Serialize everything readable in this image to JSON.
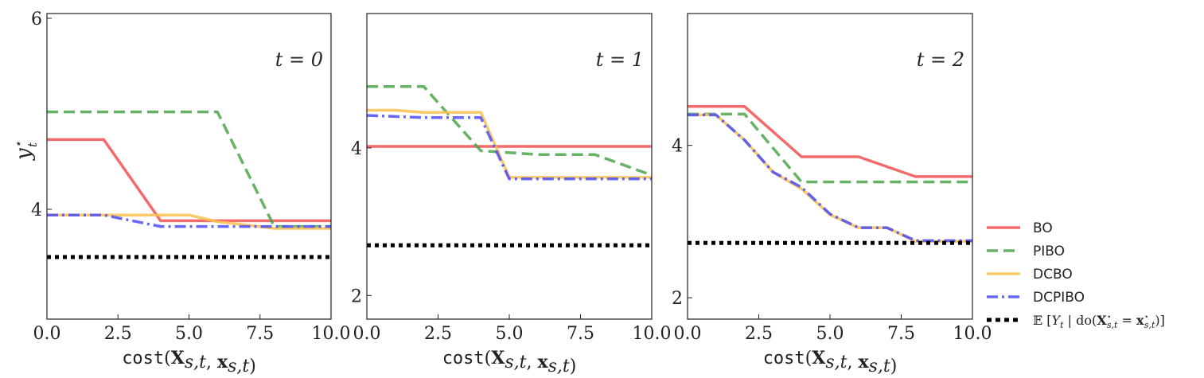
{
  "chart_data": [
    {
      "type": "line",
      "annotation": "t = 0",
      "xlabel": "cost(X_{s,t}, x_{s,t})",
      "ylabel": "y_t*",
      "xlim": [
        0,
        10
      ],
      "ylim": [
        2.85,
        6.05
      ],
      "xticks": [
        "0.0",
        "2.5",
        "5.0",
        "7.5",
        "10.0"
      ],
      "yticks": [
        {
          "value": 4,
          "label": "4"
        },
        {
          "value": 6,
          "label": "6"
        }
      ],
      "series": [
        {
          "name": "BO",
          "x": [
            0,
            2,
            4,
            10
          ],
          "y": [
            4.73,
            4.73,
            3.88,
            3.88
          ]
        },
        {
          "name": "PIBO",
          "x": [
            0,
            6,
            8,
            10
          ],
          "y": [
            5.02,
            5.02,
            3.82,
            3.82
          ]
        },
        {
          "name": "DCBO",
          "x": [
            0,
            2,
            5,
            6,
            8,
            10
          ],
          "y": [
            3.94,
            3.94,
            3.94,
            3.87,
            3.8,
            3.8
          ]
        },
        {
          "name": "DCPIBO",
          "x": [
            0,
            2,
            4,
            10
          ],
          "y": [
            3.94,
            3.94,
            3.82,
            3.82
          ]
        },
        {
          "name": "E[Y_t | do(X*_{s,t} = x*_{s,t})]",
          "x": [
            0,
            10
          ],
          "y": [
            3.5,
            3.5
          ]
        }
      ]
    },
    {
      "type": "line",
      "annotation": "t = 1",
      "xlabel": "cost(X_{s,t}, x_{s,t})",
      "ylabel": "",
      "xlim": [
        0,
        10
      ],
      "ylim": [
        1.68,
        5.82
      ],
      "xticks": [
        "0.0",
        "2.5",
        "5.0",
        "7.5",
        "10.0"
      ],
      "yticks": [
        {
          "value": 2,
          "label": "2"
        },
        {
          "value": 4,
          "label": "4"
        }
      ],
      "series": [
        {
          "name": "BO",
          "x": [
            0,
            10
          ],
          "y": [
            4.02,
            4.02
          ]
        },
        {
          "name": "PIBO",
          "x": [
            0,
            2,
            4,
            6,
            8,
            10
          ],
          "y": [
            4.83,
            4.83,
            3.96,
            3.91,
            3.91,
            3.63
          ]
        },
        {
          "name": "DCBO",
          "x": [
            0,
            1,
            2,
            4,
            5,
            10
          ],
          "y": [
            4.51,
            4.51,
            4.48,
            4.48,
            3.6,
            3.6
          ]
        },
        {
          "name": "DCPIBO",
          "x": [
            0,
            2,
            4,
            5,
            10
          ],
          "y": [
            4.44,
            4.41,
            4.41,
            3.58,
            3.58
          ]
        },
        {
          "name": "E[Y_t | do(X*_{s,t} = x*_{s,t})]",
          "x": [
            0,
            10
          ],
          "y": [
            2.68,
            2.68
          ]
        }
      ]
    },
    {
      "type": "line",
      "annotation": "t = 2",
      "xlabel": "cost(X_{s,t}, x_{s,t})",
      "ylabel": "",
      "xlim": [
        0,
        10
      ],
      "ylim": [
        1.72,
        5.73
      ],
      "xticks": [
        "0.0",
        "2.5",
        "5.0",
        "7.5",
        "10.0"
      ],
      "yticks": [
        {
          "value": 2,
          "label": "2"
        },
        {
          "value": 4,
          "label": "4"
        }
      ],
      "series": [
        {
          "name": "BO",
          "x": [
            0,
            2,
            4,
            6,
            8,
            10
          ],
          "y": [
            4.51,
            4.51,
            3.85,
            3.85,
            3.59,
            3.59
          ]
        },
        {
          "name": "PIBO",
          "x": [
            0,
            2,
            4,
            10
          ],
          "y": [
            4.41,
            4.41,
            3.52,
            3.52
          ]
        },
        {
          "name": "DCBO",
          "x": [
            0,
            1,
            2,
            3,
            4,
            5,
            6,
            7,
            8,
            10
          ],
          "y": [
            4.4,
            4.4,
            4.07,
            3.65,
            3.43,
            3.09,
            2.92,
            2.92,
            2.74,
            2.74
          ]
        },
        {
          "name": "DCPIBO",
          "x": [
            0,
            1,
            2,
            3,
            4,
            5,
            6,
            7,
            8,
            10
          ],
          "y": [
            4.4,
            4.4,
            4.07,
            3.65,
            3.45,
            3.1,
            2.92,
            2.92,
            2.75,
            2.75
          ]
        },
        {
          "name": "E[Y_t | do(X*_{s,t} = x*_{s,t})]",
          "x": [
            0,
            10
          ],
          "y": [
            2.72,
            2.72
          ]
        }
      ]
    }
  ],
  "legend": {
    "placement": "right",
    "entries": [
      {
        "label": "BO",
        "color": "#f0504f",
        "style": "solid"
      },
      {
        "label": "PIBO",
        "color": "#4ca64a",
        "style": "dashed"
      },
      {
        "label": "DCBO",
        "color": "#f9bf4f",
        "style": "solid"
      },
      {
        "label": "DCPIBO",
        "color": "#4a4ef7",
        "style": "dashdot"
      },
      {
        "label": "𝔼 [Y_t | do(X*_{s,t} = x*_{s,t})]",
        "color": "#000000",
        "style": "dotted"
      }
    ]
  },
  "colors": {
    "BO": "#f0504f",
    "PIBO": "#4ca64a",
    "DCBO": "#f9bf4f",
    "DCPIBO": "#4a4ef7",
    "target": "#000000"
  }
}
